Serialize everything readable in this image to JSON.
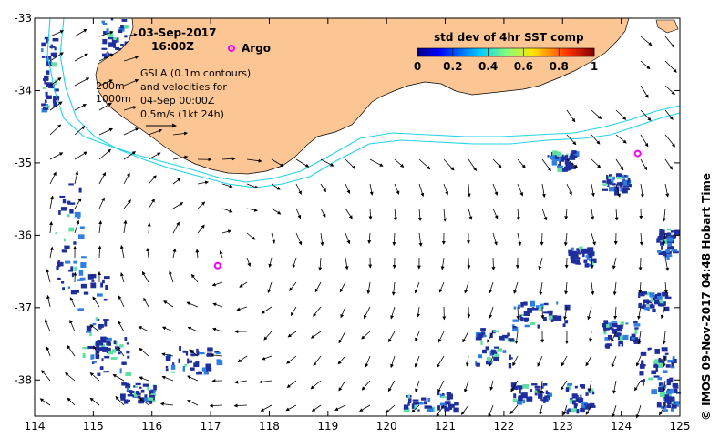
{
  "map": {
    "date": "03-Sep-2017",
    "time": "16:00Z",
    "argo_label": "Argo",
    "contours_label": [
      "200m",
      "1000m"
    ],
    "gsla_lines": [
      "GSLA (0.1m contours)",
      "and velocities for",
      "04-Sep 00:00Z",
      "0.5m/s (1kt 24h)"
    ],
    "colorbar": {
      "title": "std dev of 4hr SST comp",
      "ticks": [
        "0",
        "0.2",
        "0.4",
        "0.6",
        "0.8",
        "1"
      ]
    },
    "credit": "© IMOS 09-Nov-2017 04:48 Hobart Time",
    "lon_ticks": [
      "114",
      "115",
      "116",
      "117",
      "118",
      "119",
      "120",
      "121",
      "122",
      "123",
      "124",
      "125"
    ],
    "lat_ticks": [
      "-33",
      "-34",
      "-35",
      "-36",
      "-37",
      "-38"
    ],
    "colors": {
      "land": "#fcc694",
      "shelf_contours": "#22d3e6",
      "argo": "#ff00ff",
      "sst_patch": "#1e2e9c"
    },
    "argo_floats": [
      {
        "lon": 117.12,
        "lat": -36.42
      },
      {
        "lon": 124.28,
        "lat": -34.87
      }
    ]
  }
}
